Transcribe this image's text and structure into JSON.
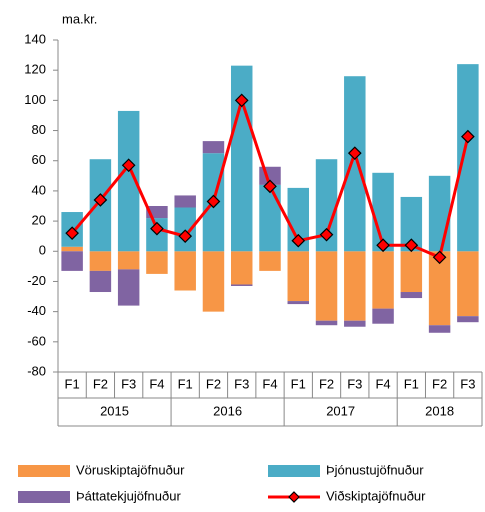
{
  "chart_data": {
    "type": "bar",
    "stacked": true,
    "y_axis_label": "ma.kr.",
    "groups": [
      {
        "label": "2015",
        "categories": [
          "F1",
          "F2",
          "F3",
          "F4"
        ]
      },
      {
        "label": "2016",
        "categories": [
          "F1",
          "F2",
          "F3",
          "F4"
        ]
      },
      {
        "label": "2017",
        "categories": [
          "F1",
          "F2",
          "F3",
          "F4"
        ]
      },
      {
        "label": "2018",
        "categories": [
          "F1",
          "F2",
          "F3"
        ]
      }
    ],
    "series": [
      {
        "name": "Vöruskiptajöfnuður",
        "type": "bar",
        "color": "#f79646",
        "values": [
          3,
          -13,
          -12,
          -15,
          -26,
          -40,
          -22,
          -13,
          -33,
          -46,
          -46,
          -38,
          -27,
          -49,
          -43
        ]
      },
      {
        "name": "Þjónustujöfnuður",
        "type": "bar",
        "color": "#4bacc6",
        "values": [
          23,
          61,
          93,
          22,
          29,
          65,
          123,
          44,
          42,
          61,
          116,
          52,
          36,
          50,
          124
        ]
      },
      {
        "name": "Þáttatekjujöfnuður",
        "type": "bar",
        "color": "#8064a2",
        "values": [
          -13,
          -14,
          -24,
          8,
          8,
          8,
          -1,
          12,
          -2,
          -3,
          -4,
          -10,
          -4,
          -5,
          -4
        ]
      },
      {
        "name": "Viðskiptajöfnuður",
        "type": "line",
        "color": "#ff0000",
        "values": [
          12,
          34,
          57,
          15,
          10,
          33,
          100,
          43,
          7,
          11,
          65,
          4,
          4,
          -4,
          76
        ]
      }
    ],
    "ylim": [
      -80,
      140
    ],
    "yticks": [
      -80,
      -60,
      -40,
      -20,
      0,
      20,
      40,
      60,
      80,
      100,
      120,
      140
    ],
    "grid": false
  }
}
